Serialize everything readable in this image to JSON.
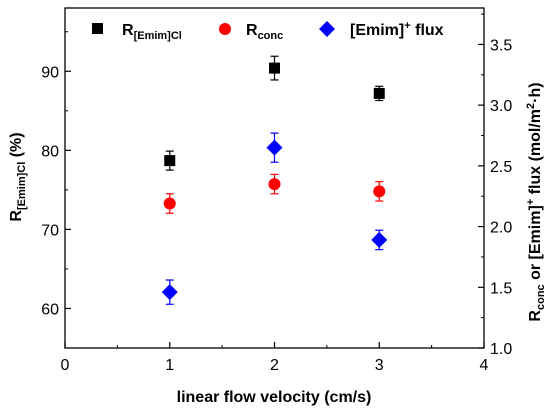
{
  "chart_data": {
    "type": "scatter",
    "x_axis": {
      "label": "linear flow velocity (cm/s)",
      "lim": [
        0,
        4
      ],
      "ticks": [
        0,
        1,
        2,
        3,
        4
      ]
    },
    "y_left": {
      "label_main": "R",
      "label_sub": "[Emim]Cl",
      "label_suffix": " (%)",
      "lim": [
        55,
        98
      ],
      "ticks": [
        60,
        70,
        80,
        90
      ]
    },
    "y_right": {
      "label_main_1": "R",
      "label_sub_1": "conc",
      "label_mid": " or [Emim]",
      "label_sup": "+",
      "label_end": " flux (mol/m",
      "label_sup2": "2",
      "label_end2": "·h)",
      "lim": [
        1.0,
        3.8
      ],
      "ticks": [
        1.0,
        1.5,
        2.0,
        2.5,
        3.0,
        3.5
      ],
      "tick_labels": [
        "1.0",
        "1.5",
        "2.0",
        "2.5",
        "3.0",
        "3.5"
      ]
    },
    "series": [
      {
        "name_main": "R",
        "name_sub": "[Emim]Cl",
        "axis": "left",
        "marker": "square",
        "color": "#000000",
        "x": [
          1,
          2,
          3
        ],
        "y": [
          78.7,
          90.4,
          87.2
        ],
        "err": [
          1.2,
          1.5,
          0.9
        ]
      },
      {
        "name_main": "R",
        "name_sub": "conc",
        "axis": "right",
        "marker": "circle",
        "color": "#ff0000",
        "x": [
          1,
          2,
          3
        ],
        "y": [
          2.19,
          2.35,
          2.29
        ],
        "err": [
          0.08,
          0.08,
          0.08
        ]
      },
      {
        "name_main": "[Emim]",
        "name_sup": "+",
        "name_end": " flux",
        "axis": "right",
        "marker": "diamond",
        "color": "#0000ff",
        "x": [
          1,
          2,
          3
        ],
        "y": [
          1.46,
          2.65,
          1.89
        ],
        "err": [
          0.1,
          0.12,
          0.08
        ]
      }
    ],
    "legend_position": "top"
  }
}
